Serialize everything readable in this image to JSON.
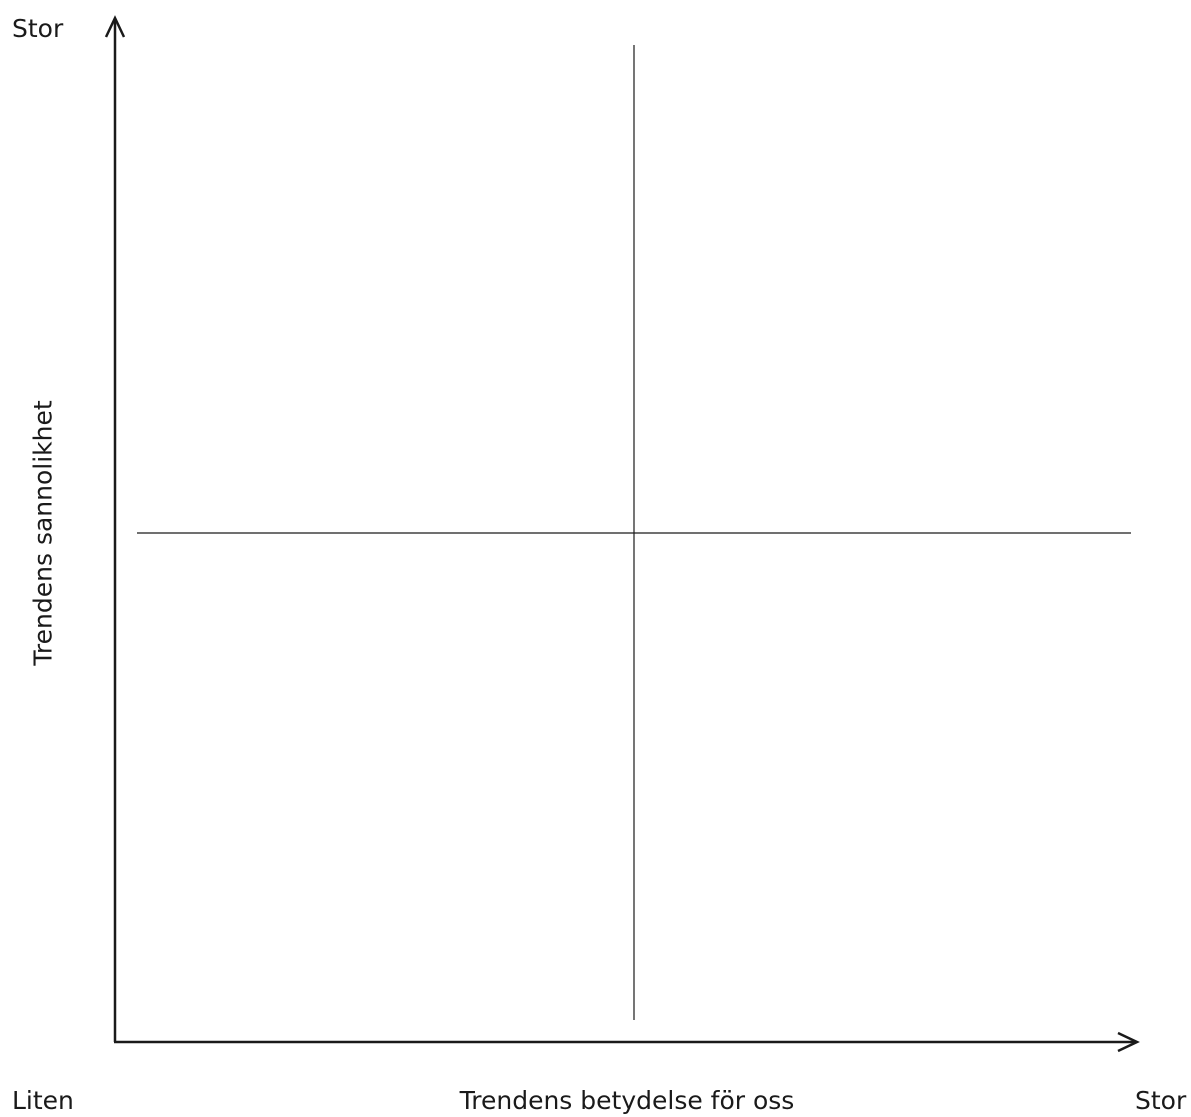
{
  "diagram": {
    "y_axis": {
      "label": "Trendens sannolikhet",
      "high_label": "Stor"
    },
    "x_axis": {
      "label": "Trendens betydelse för oss",
      "low_label": "Liten",
      "high_label": "Stor"
    },
    "line_color": "#1a1a1a"
  }
}
